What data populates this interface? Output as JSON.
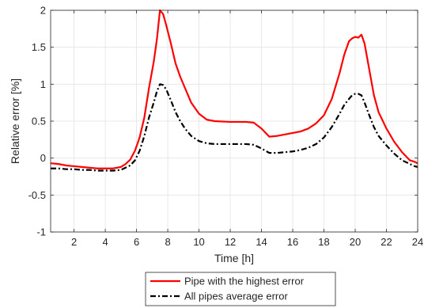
{
  "chart_data": {
    "type": "line",
    "xlabel": "Time [h]",
    "ylabel": "Relative error [%]",
    "xlim": [
      0.5,
      24
    ],
    "ylim": [
      -1,
      2
    ],
    "xticks": [
      2,
      4,
      6,
      8,
      10,
      12,
      14,
      16,
      18,
      20,
      22,
      24
    ],
    "yticks": [
      -1,
      -0.5,
      0,
      0.5,
      1,
      1.5,
      2
    ],
    "xtick_labels": [
      "2",
      "4",
      "6",
      "8",
      "10",
      "12",
      "14",
      "16",
      "18",
      "20",
      "22",
      "24"
    ],
    "ytick_labels": [
      "-1",
      "-0.5",
      "0",
      "0.5",
      "1",
      "1.5",
      "2"
    ],
    "grid": true,
    "legend_position": "bottom-center-outside",
    "series": [
      {
        "name": "Pipe with the highest error",
        "color": "#ff0000",
        "linestyle": "solid",
        "x": [
          0.5,
          1,
          1.5,
          2,
          2.5,
          3,
          3.5,
          4,
          4.5,
          5,
          5.3,
          5.6,
          5.9,
          6.2,
          6.5,
          6.8,
          7.1,
          7.3,
          7.5,
          7.7,
          7.9,
          8.2,
          8.5,
          8.8,
          9.1,
          9.5,
          10,
          10.5,
          11,
          12,
          13,
          13.5,
          14,
          14.5,
          15,
          15.5,
          16,
          16.5,
          17,
          17.5,
          18,
          18.5,
          19,
          19.3,
          19.6,
          19.8,
          20,
          20.2,
          20.4,
          20.6,
          20.9,
          21.2,
          21.5,
          22,
          22.5,
          23,
          23.5,
          23.8,
          24
        ],
        "values": [
          -0.07,
          -0.08,
          -0.1,
          -0.11,
          -0.12,
          -0.13,
          -0.14,
          -0.14,
          -0.14,
          -0.12,
          -0.08,
          -0.02,
          0.1,
          0.28,
          0.55,
          0.95,
          1.3,
          1.6,
          2.0,
          1.95,
          1.8,
          1.55,
          1.28,
          1.1,
          0.95,
          0.75,
          0.6,
          0.52,
          0.5,
          0.49,
          0.49,
          0.48,
          0.4,
          0.29,
          0.3,
          0.32,
          0.34,
          0.36,
          0.4,
          0.47,
          0.58,
          0.8,
          1.15,
          1.4,
          1.58,
          1.62,
          1.64,
          1.63,
          1.67,
          1.55,
          1.2,
          0.85,
          0.62,
          0.4,
          0.22,
          0.08,
          -0.03,
          -0.05,
          -0.07
        ]
      },
      {
        "name": "All pipes average error",
        "color": "#000000",
        "linestyle": "dashdot",
        "x": [
          0.5,
          1,
          1.5,
          2,
          2.5,
          3,
          3.5,
          4,
          4.5,
          5,
          5.3,
          5.6,
          5.9,
          6.2,
          6.5,
          6.8,
          7.1,
          7.3,
          7.5,
          7.7,
          7.9,
          8.2,
          8.5,
          8.8,
          9.1,
          9.5,
          10,
          10.5,
          11,
          12,
          13,
          13.5,
          14,
          14.5,
          15,
          15.5,
          16,
          16.5,
          17,
          17.5,
          18,
          18.5,
          19,
          19.3,
          19.6,
          19.8,
          20,
          20.2,
          20.4,
          20.6,
          20.9,
          21.2,
          21.5,
          22,
          22.5,
          23,
          23.5,
          23.8,
          24
        ],
        "values": [
          -0.14,
          -0.14,
          -0.15,
          -0.15,
          -0.16,
          -0.16,
          -0.17,
          -0.17,
          -0.17,
          -0.16,
          -0.13,
          -0.1,
          -0.03,
          0.1,
          0.3,
          0.55,
          0.75,
          0.9,
          1.0,
          0.99,
          0.93,
          0.78,
          0.62,
          0.5,
          0.4,
          0.3,
          0.23,
          0.2,
          0.19,
          0.19,
          0.19,
          0.18,
          0.13,
          0.07,
          0.07,
          0.08,
          0.09,
          0.11,
          0.14,
          0.19,
          0.28,
          0.42,
          0.6,
          0.72,
          0.8,
          0.85,
          0.87,
          0.87,
          0.85,
          0.75,
          0.58,
          0.42,
          0.3,
          0.17,
          0.06,
          -0.03,
          -0.08,
          -0.11,
          -0.12
        ]
      }
    ]
  }
}
